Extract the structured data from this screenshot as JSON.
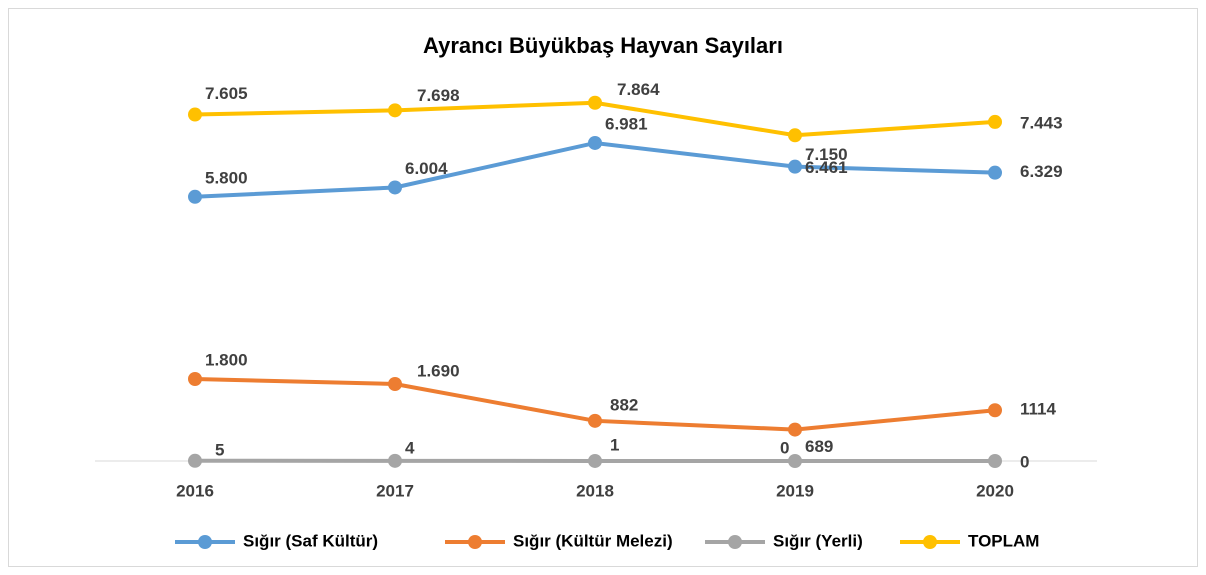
{
  "chart_data": {
    "type": "line",
    "title": "Ayrancı Büyükbaş  Hayvan Sayıları",
    "categories": [
      "2016",
      "2017",
      "2018",
      "2019",
      "2020"
    ],
    "series": [
      {
        "name": "Sığır (Saf Kültür)",
        "color": "#5b9bd5",
        "values": [
          5800,
          6004,
          6981,
          6461,
          6329
        ],
        "value_labels": [
          "5.800",
          "6.004",
          "6.981",
          "6.461",
          "6.329"
        ]
      },
      {
        "name": "Sığır (Kültür Melezi)",
        "color": "#ed7d31",
        "values": [
          1800,
          1690,
          882,
          689,
          1114
        ],
        "value_labels": [
          "1.800",
          "1.690",
          "882",
          "689",
          "1114"
        ]
      },
      {
        "name": "Sığır (Yerli)",
        "color": "#a5a5a5",
        "values": [
          5,
          4,
          1,
          0,
          0
        ]
      },
      {
        "name": "TOPLAM",
        "color": "#ffc000",
        "values": [
          7605,
          7698,
          7864,
          7150,
          7443
        ],
        "value_labels": [
          "7.605",
          "7.698",
          "7.864",
          "7.150",
          "7.443"
        ]
      }
    ],
    "ylim": [
      0,
      9000
    ],
    "legend": "bottom",
    "grid": false
  }
}
